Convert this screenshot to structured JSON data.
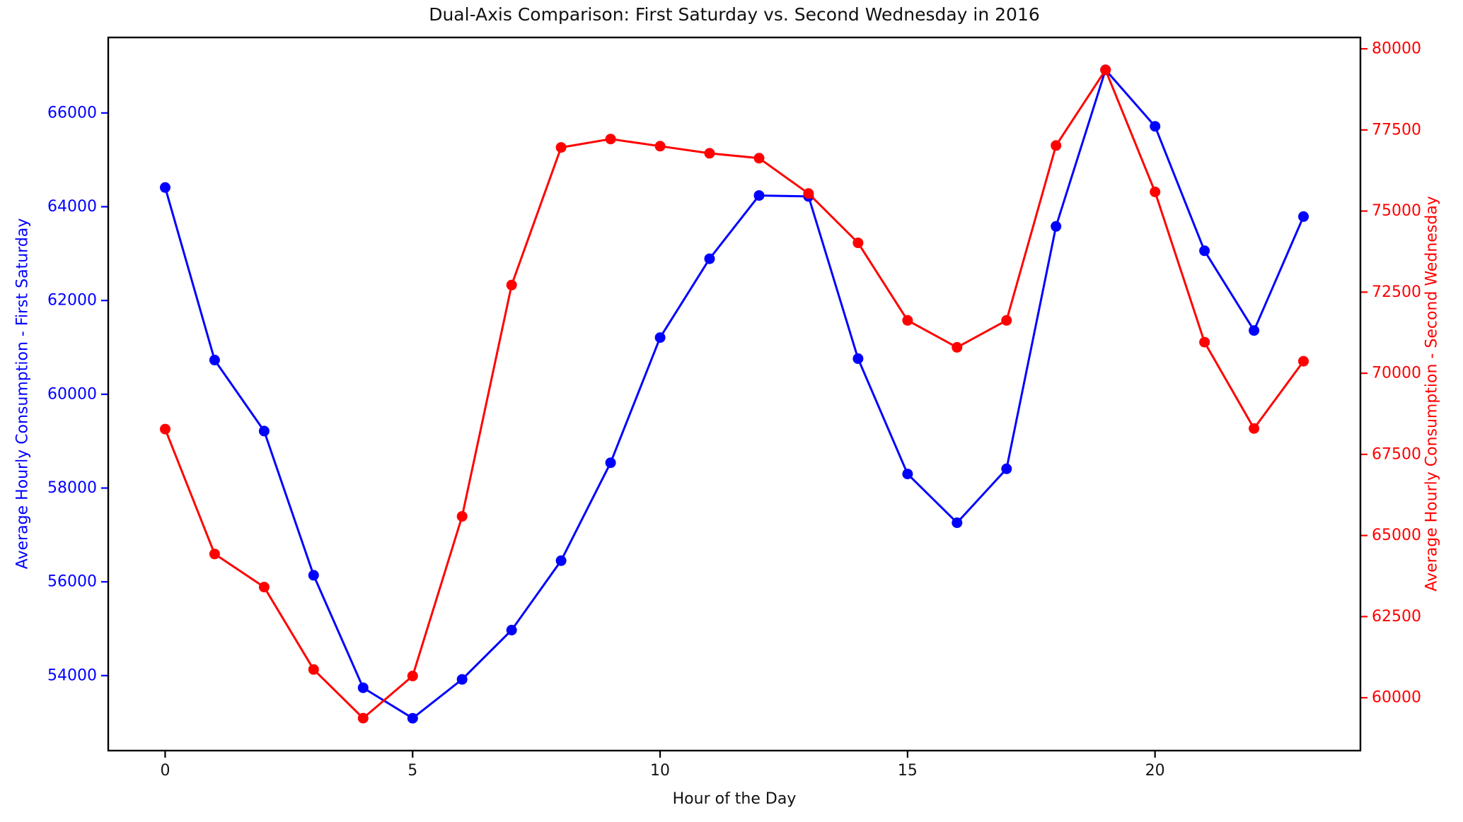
{
  "chart_data": {
    "type": "line",
    "title": "Dual-Axis Comparison: First Saturday vs. Second Wednesday in 2016",
    "xlabel": "Hour of the Day",
    "x": [
      0,
      1,
      2,
      3,
      4,
      5,
      6,
      7,
      8,
      9,
      10,
      11,
      12,
      13,
      14,
      15,
      16,
      17,
      18,
      19,
      20,
      21,
      22,
      23
    ],
    "xticks": [
      0,
      5,
      10,
      15,
      20
    ],
    "xlim": [
      -1.15,
      24.15
    ],
    "grid": false,
    "legend": "none",
    "background": "#ffffff",
    "spine_color": "#000000",
    "tick_label_color_x": "#151515",
    "left_axis": {
      "label": "Average Hourly Consumption - First Saturday",
      "color": "#0000ff",
      "ticks": [
        54000,
        56000,
        58000,
        60000,
        62000,
        64000,
        66000
      ],
      "lim": [
        52400,
        67610
      ]
    },
    "right_axis": {
      "label": "Average Hourly Consumption - Second Wednesday",
      "color": "#ff0000",
      "ticks": [
        60000,
        62500,
        65000,
        67500,
        70000,
        72500,
        75000,
        77500,
        80000
      ],
      "lim": [
        58370,
        80350
      ]
    },
    "series": [
      {
        "name": "First Saturday",
        "axis": "left",
        "color": "#0000ff",
        "marker": "circle",
        "values": [
          64410,
          60730,
          59215,
          56140,
          53740,
          53090,
          53920,
          54970,
          56450,
          58540,
          61210,
          62890,
          64240,
          64220,
          60760,
          58300,
          57260,
          58410,
          63580,
          66920,
          65715,
          63060,
          61360,
          63790
        ]
      },
      {
        "name": "Second Wednesday",
        "axis": "right",
        "color": "#ff0000",
        "marker": "circle",
        "values": [
          68280,
          64430,
          63410,
          60870,
          59370,
          60670,
          65590,
          72720,
          76960,
          77220,
          77000,
          76780,
          76630,
          75540,
          74020,
          71630,
          70800,
          71630,
          77020,
          79350,
          75590,
          70960,
          68300,
          70370
        ]
      }
    ]
  }
}
